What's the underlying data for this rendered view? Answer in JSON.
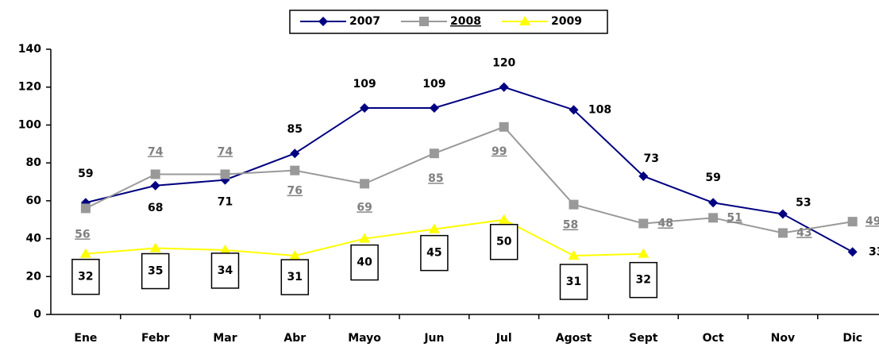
{
  "chart_data": {
    "type": "line",
    "categories": [
      "Ene",
      "Febr",
      "Mar",
      "Abr",
      "Mayo",
      "Jun",
      "Jul",
      "Agost",
      "Sept",
      "Oct",
      "Nov",
      "Dic"
    ],
    "series": [
      {
        "name": "2007",
        "color": "#000080",
        "marker": "diamond",
        "values": [
          59,
          68,
          71,
          85,
          109,
          109,
          120,
          108,
          73,
          59,
          53,
          33
        ]
      },
      {
        "name": "2008",
        "color": "#999999",
        "marker": "square",
        "values": [
          56,
          74,
          74,
          76,
          69,
          85,
          99,
          58,
          48,
          51,
          43,
          49
        ]
      },
      {
        "name": "2009",
        "color": "#ffff00",
        "marker": "triangle",
        "values": [
          32,
          35,
          34,
          31,
          40,
          45,
          50,
          31,
          32,
          null,
          null,
          null
        ]
      }
    ],
    "ylim": [
      0,
      140
    ],
    "yticks": [
      0,
      20,
      40,
      60,
      80,
      100,
      120,
      140
    ],
    "grid": false,
    "legend": "top"
  }
}
